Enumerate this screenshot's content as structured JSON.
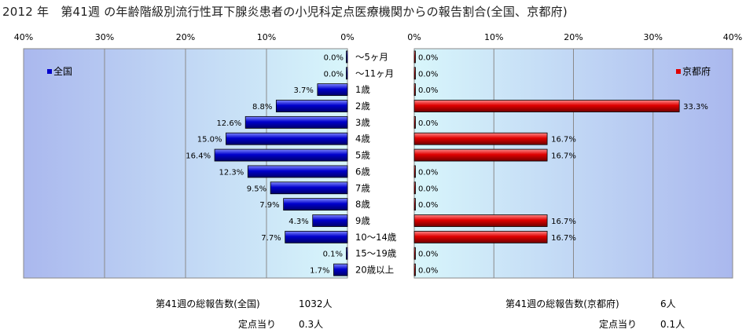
{
  "title": "2012 年　第41週 の年齢階級別流行性耳下腺炎患者の小児科定点医療機関からの報告割合(全国、京都府)",
  "chart_data": [
    {
      "type": "bar",
      "orientation": "horizontal",
      "direction": "right-to-left",
      "legend": "全国",
      "legend_position": "top-left",
      "color": "#0000cc",
      "xlim": [
        0,
        40
      ],
      "ticks": [
        "0%",
        "10%",
        "20%",
        "30%",
        "40%"
      ],
      "tick_values": [
        0,
        10,
        20,
        30,
        40
      ],
      "grid": true,
      "values": [
        0.0,
        0.0,
        3.7,
        8.8,
        12.6,
        15.0,
        16.4,
        12.3,
        9.5,
        7.9,
        4.3,
        7.7,
        0.1,
        1.7
      ],
      "labels": [
        "0.0%",
        "0.0%",
        "3.7%",
        "8.8%",
        "12.6%",
        "15.0%",
        "16.4%",
        "12.3%",
        "9.5%",
        "7.9%",
        "4.3%",
        "7.7%",
        "0.1%",
        "1.7%"
      ]
    },
    {
      "type": "bar",
      "orientation": "horizontal",
      "direction": "left-to-right",
      "legend": "京都府",
      "legend_position": "top-right",
      "color": "#e00000",
      "xlim": [
        0,
        40
      ],
      "ticks": [
        "0%",
        "10%",
        "20%",
        "30%",
        "40%"
      ],
      "tick_values": [
        0,
        10,
        20,
        30,
        40
      ],
      "grid": true,
      "values": [
        0.0,
        0.0,
        0.0,
        33.3,
        0.0,
        16.7,
        16.7,
        0.0,
        0.0,
        0.0,
        16.7,
        16.7,
        0.0,
        0.0
      ],
      "labels": [
        "0.0%",
        "0.0%",
        "0.0%",
        "33.3%",
        "0.0%",
        "16.7%",
        "16.7%",
        "0.0%",
        "0.0%",
        "0.0%",
        "16.7%",
        "16.7%",
        "0.0%",
        "0.0%"
      ]
    }
  ],
  "categories": [
    "～5ヶ月",
    "～11ヶ月",
    "1歳",
    "2歳",
    "3歳",
    "4歳",
    "5歳",
    "6歳",
    "7歳",
    "8歳",
    "9歳",
    "10～14歳",
    "15～19歳",
    "20歳以上"
  ],
  "footer": {
    "national_total_label": "第41週の総報告数(全国)",
    "national_total_value": "1032人",
    "national_per_label": "定点当り",
    "national_per_value": "0.3人",
    "kyoto_total_label": "第41週の総報告数(京都府)",
    "kyoto_total_value": "6人",
    "kyoto_per_label": "定点当り",
    "kyoto_per_value": "0.1人"
  }
}
